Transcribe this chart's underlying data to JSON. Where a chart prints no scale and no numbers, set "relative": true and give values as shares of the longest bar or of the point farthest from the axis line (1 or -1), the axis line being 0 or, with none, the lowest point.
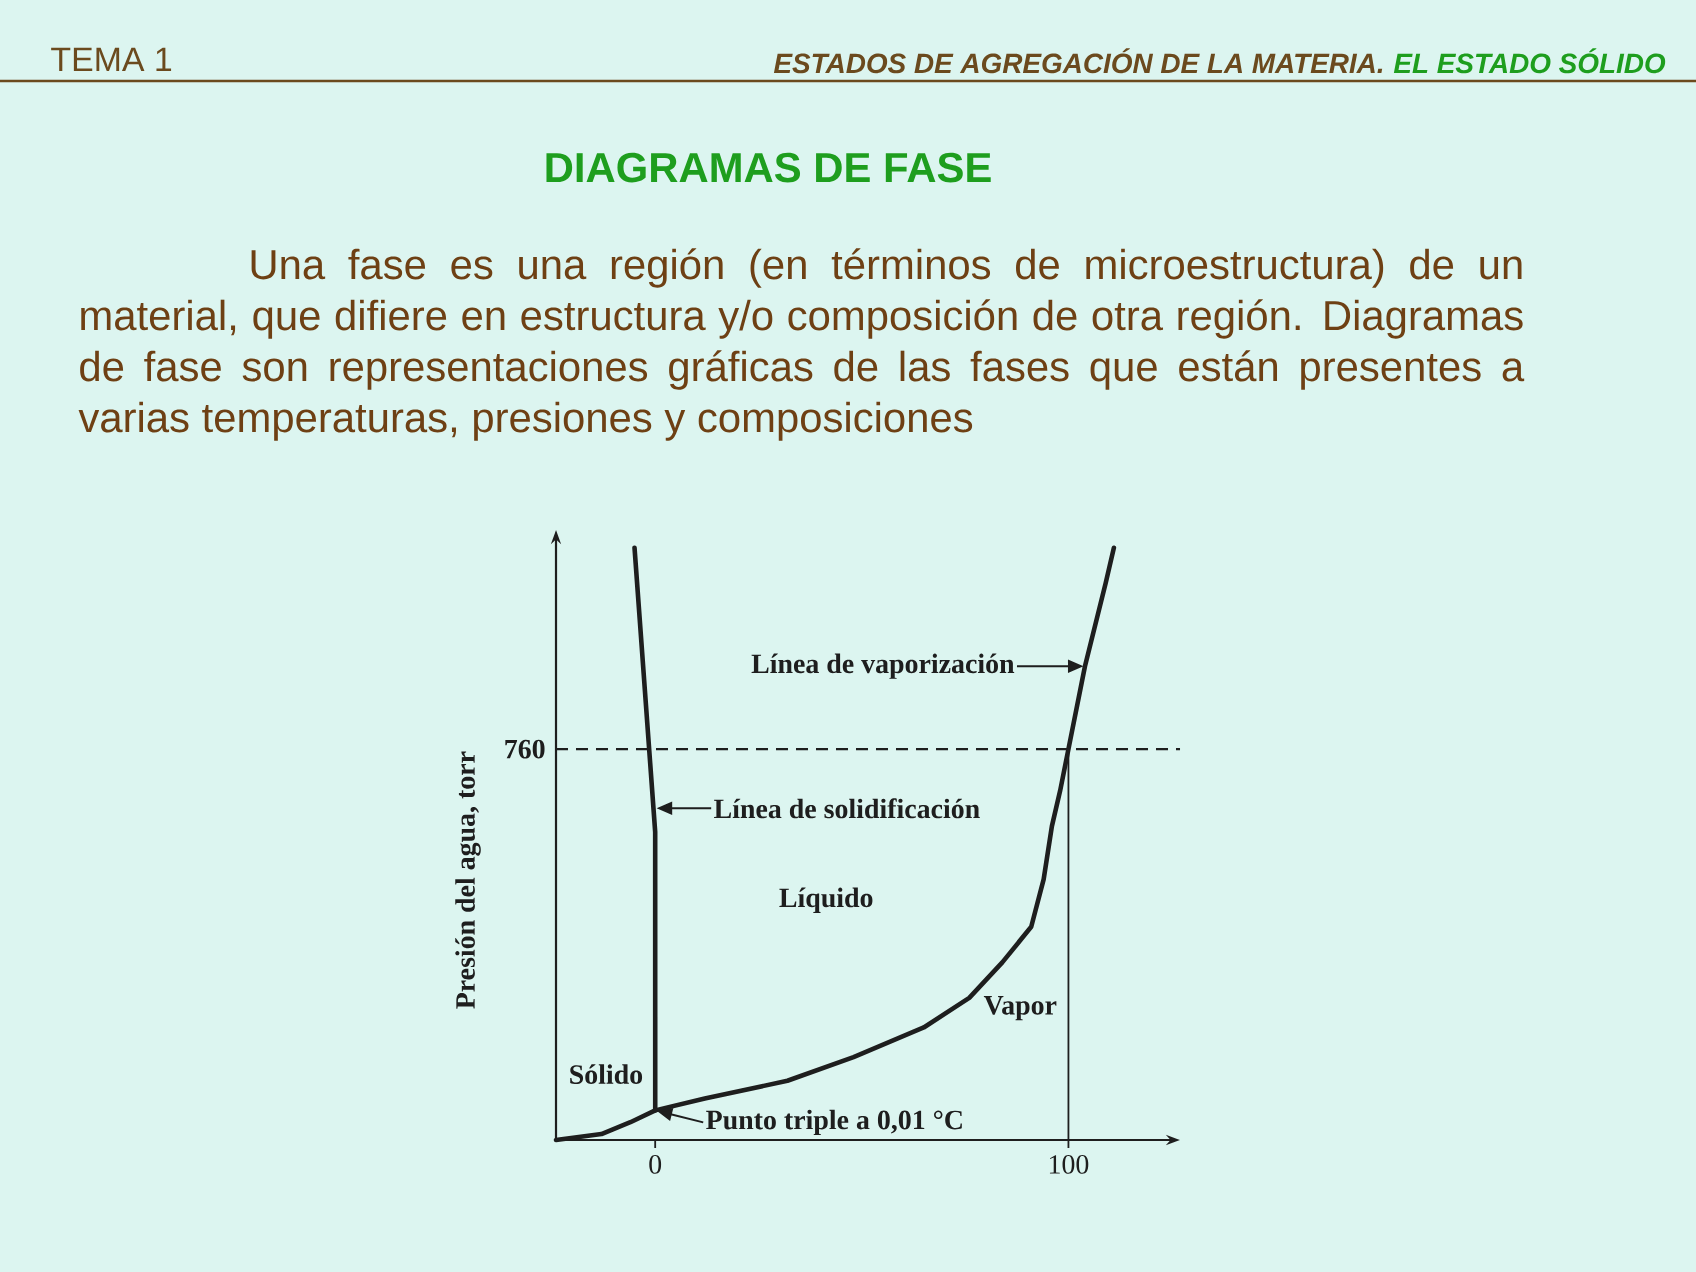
{
  "chart_data": {
    "type": "line",
    "title": "DIAGRAMAS DE FASE",
    "subtitle": "Una fase es una región (en términos de microestructura) de un material, que difiere en estructura y/o composición de otra región. Diagramas de fase son representaciones gráficas de las fases que están presentes a varias temperaturas, presiones y composiciones",
    "ylabel": "Presión del agua, torr",
    "relative": true,
    "xlim": [
      -24,
      127
    ],
    "xticks": [
      0,
      100
    ],
    "marker": "none",
    "line_style": "solid",
    "series": [
      {
        "color": "#1e1e1e",
        "x": [
          -24,
          -13,
          -6,
          0.01,
          12,
          32,
          48,
          65,
          76,
          84,
          91,
          94,
          96,
          98,
          100,
          104,
          109,
          111
        ],
        "values": [
          0,
          0.01,
          0.03,
          0.05,
          0.07,
          0.1,
          0.14,
          0.19,
          0.24,
          0.3,
          0.36,
          0.44,
          0.53,
          0.59,
          0.66,
          0.8,
          0.94,
          1.0
        ]
      },
      {
        "color": "#1e1e1e",
        "x": [
          0.01,
          0,
          -5
        ],
        "values": [
          0.05,
          0.52,
          1.0
        ]
      }
    ],
    "ref_lines": [
      {
        "axis": "y",
        "value": 0.66,
        "line_style": "dashed",
        "color": "#1e1e1e"
      },
      {
        "axis": "x",
        "value": 100,
        "color": "#1e1e1e"
      }
    ],
    "annotations": [
      "TEMA 1",
      "ESTADOS DE AGREGACIÓN DE LA MATERIA.",
      "EL ESTADO SÓLIDO",
      "760",
      "Líquido",
      "Vapor",
      "Sólido",
      {
        "text": "Línea de vaporización",
        "x": 104,
        "y": 0.8
      },
      {
        "text": "Línea de solidificación",
        "x": 0,
        "y": 0.56
      },
      {
        "text": "Punto triple a 0,01 °C",
        "x": 0.01,
        "y": 0.05
      }
    ]
  }
}
